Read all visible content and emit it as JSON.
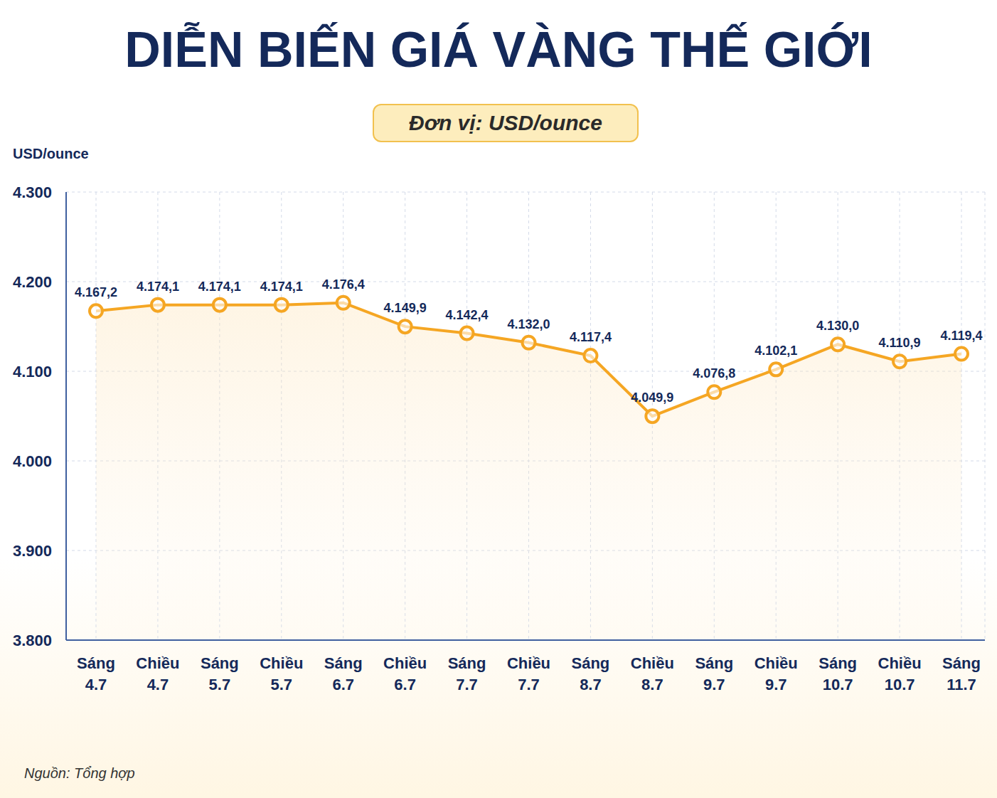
{
  "chart_data": {
    "type": "line",
    "title": "DIỄN BIẾN GIÁ VÀNG THẾ GIỚI",
    "subtitle": "Đơn vị: USD/ounce",
    "y_label": "USD/ounce",
    "source": "Nguồn: Tổng hợp",
    "categories": [
      "Sáng 4.7",
      "Chiều 4.7",
      "Sáng 5.7",
      "Chiều 5.7",
      "Sáng 6.7",
      "Chiều 6.7",
      "Sáng 7.7",
      "Chiều 7.7",
      "Sáng 8.7",
      "Chiều 8.7",
      "Sáng 9.7",
      "Chiều 9.7",
      "Sáng 10.7",
      "Chiều 10.7",
      "Sáng 11.7"
    ],
    "values": [
      4167.2,
      4174.1,
      4174.1,
      4174.1,
      4176.4,
      4149.9,
      4142.4,
      4132.0,
      4117.4,
      4049.9,
      4076.8,
      4102.1,
      4130.0,
      4110.9,
      4119.4
    ],
    "value_labels": [
      "4.167,2",
      "4.174,1",
      "4.174,1",
      "4.174,1",
      "4.176,4",
      "4.149,9",
      "4.142,4",
      "4.132,0",
      "4.117,4",
      "4.049,9",
      "4.076,8",
      "4.102,1",
      "4.130,0",
      "4.110,9",
      "4.119,4"
    ],
    "color": "#f5a623",
    "ylim": [
      3800,
      4300
    ],
    "yticks": [
      {
        "value": 3800,
        "label": "3.800"
      },
      {
        "value": 3900,
        "label": "3.900"
      },
      {
        "value": 4000,
        "label": "4.000"
      },
      {
        "value": 4100,
        "label": "4.100"
      },
      {
        "value": 4200,
        "label": "4.200"
      },
      {
        "value": 4300,
        "label": "4.300"
      }
    ],
    "grid": true,
    "data_labels": true,
    "marker": "circle"
  }
}
